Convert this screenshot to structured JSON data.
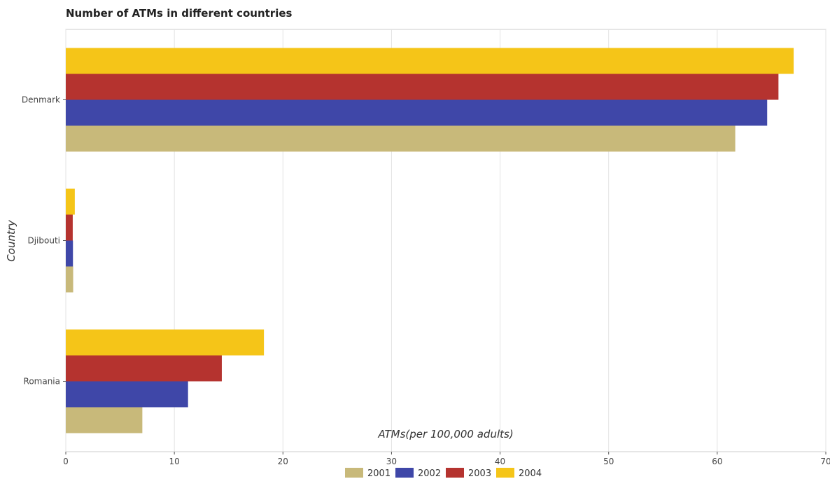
{
  "chart_data": {
    "type": "bar",
    "orientation": "horizontal",
    "title": "Number of ATMs in different countries",
    "xlabel": "ATMs(per 100,000 adults)",
    "ylabel": "Country",
    "categories": [
      "Denmark",
      "Djibouti",
      "Romania"
    ],
    "series": [
      {
        "name": "2001",
        "color": "#c8b97a",
        "values": [
          61.66,
          0.68,
          7.05
        ]
      },
      {
        "name": "2002",
        "color": "#3f47a8",
        "values": [
          64.6,
          0.66,
          11.26
        ]
      },
      {
        "name": "2003",
        "color": "#b5332f",
        "values": [
          65.64,
          0.64,
          14.37
        ]
      },
      {
        "name": "2004",
        "color": "#f5c518",
        "values": [
          67.04,
          0.83,
          18.25
        ]
      }
    ],
    "xlim": [
      0,
      70
    ],
    "xticks": [
      0,
      10,
      20,
      30,
      40,
      50,
      60,
      70
    ],
    "grid": true,
    "legend_position": "bottom-center"
  }
}
